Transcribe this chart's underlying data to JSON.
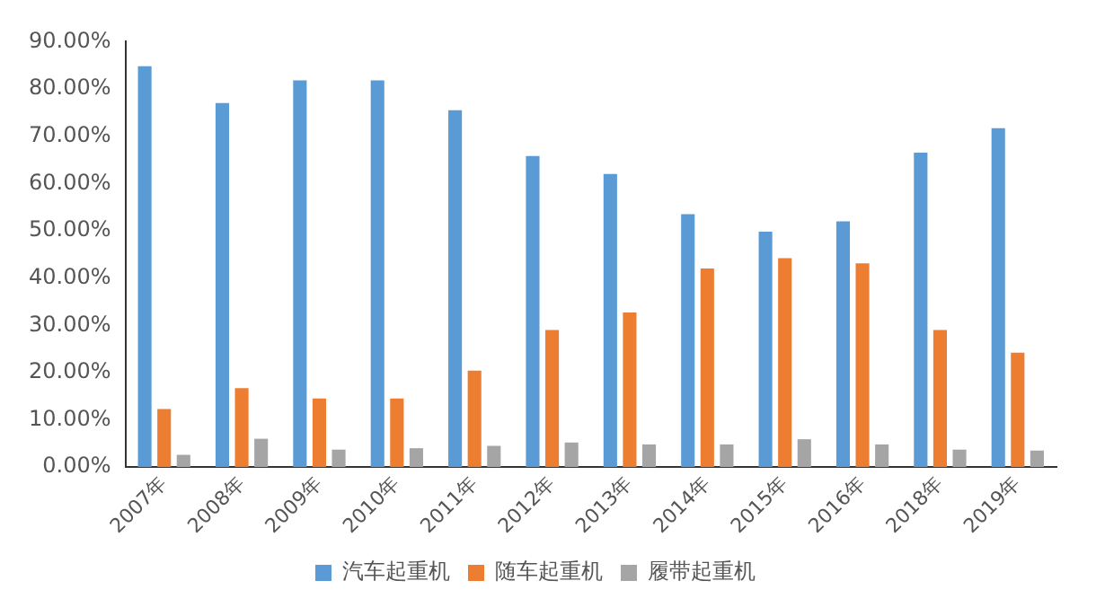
{
  "chart_data": {
    "type": "bar",
    "categories": [
      "2007年",
      "2008年",
      "2009年",
      "2010年",
      "2011年",
      "2012年",
      "2013年",
      "2014年",
      "2015年",
      "2016年",
      "2018年",
      "2019年"
    ],
    "series": [
      {
        "name": "汽车起重机",
        "color": "#5b9bd5",
        "values": [
          84.8,
          77,
          81.8,
          81.8,
          75.5,
          65.8,
          62,
          53.5,
          49.8,
          52,
          66.5,
          71.7
        ]
      },
      {
        "name": "随车起重机",
        "color": "#ed7d31",
        "values": [
          12.3,
          16.7,
          14.5,
          14.5,
          20.4,
          29,
          32.7,
          42,
          44.2,
          43.1,
          29,
          24.2
        ]
      },
      {
        "name": "履带起重机",
        "color": "#a5a5a5",
        "values": [
          2.6,
          6,
          3.7,
          4,
          4.5,
          5.2,
          4.8,
          4.8,
          5.9,
          4.8,
          3.7,
          3.5
        ]
      }
    ],
    "ylim": [
      0,
      90
    ],
    "yticks": [
      {
        "value": 0,
        "label": "0.00%"
      },
      {
        "value": 10,
        "label": "10.00%"
      },
      {
        "value": 20,
        "label": "20.00%"
      },
      {
        "value": 30,
        "label": "30.00%"
      },
      {
        "value": 40,
        "label": "40.00%"
      },
      {
        "value": 50,
        "label": "50.00%"
      },
      {
        "value": 60,
        "label": "60.00%"
      },
      {
        "value": 70,
        "label": "70.00%"
      },
      {
        "value": 80,
        "label": "80.00%"
      },
      {
        "value": 90,
        "label": "90.00%"
      }
    ],
    "grid": false,
    "legend": "bottom"
  }
}
